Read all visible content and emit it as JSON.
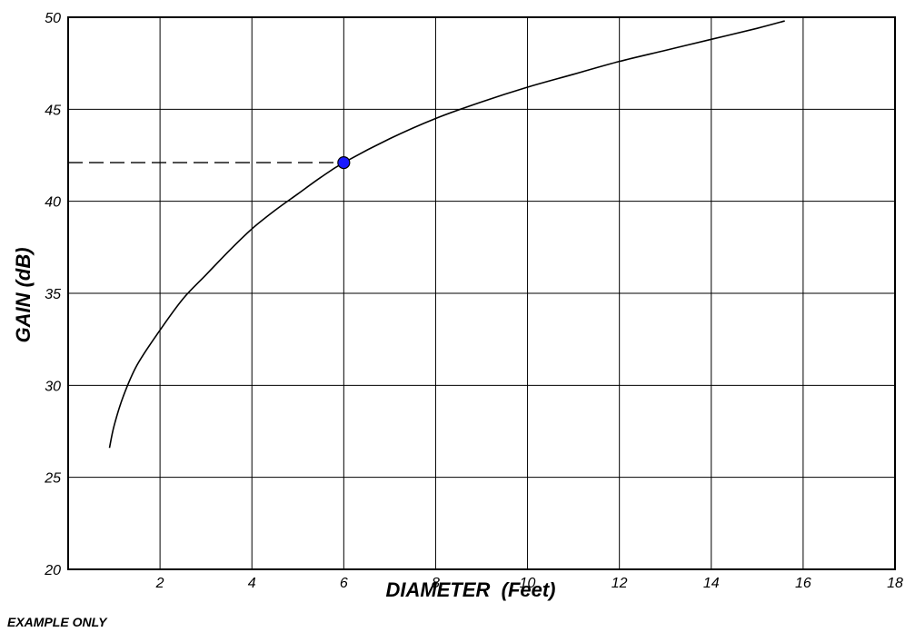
{
  "chart_data": {
    "type": "line",
    "title": "",
    "xlabel": "DIAMETER  (Feet)",
    "ylabel": "GAIN (dB)",
    "xlim": [
      0,
      18
    ],
    "ylim": [
      20,
      50
    ],
    "x_ticks": [
      2,
      4,
      6,
      8,
      10,
      12,
      14,
      16,
      18
    ],
    "y_ticks": [
      20,
      25,
      30,
      35,
      40,
      45,
      50
    ],
    "grid": true,
    "series": [
      {
        "x": [
          0.9,
          1.0,
          1.2,
          1.5,
          2.0,
          2.5,
          3.0,
          3.5,
          4.0,
          4.5,
          5.0,
          5.5,
          6.0,
          7.0,
          8.0,
          9.0,
          10.0,
          11.0,
          12.0,
          13.0,
          14.0,
          15.0,
          15.6
        ],
        "y": [
          26.6,
          27.8,
          29.4,
          31.1,
          33.0,
          34.7,
          36.0,
          37.3,
          38.5,
          39.5,
          40.4,
          41.3,
          42.1,
          43.4,
          44.5,
          45.4,
          46.2,
          46.9,
          47.6,
          48.2,
          48.8,
          49.4,
          49.8
        ],
        "color": "#000000"
      }
    ],
    "highlight_point": {
      "x": 6,
      "y": 42.1,
      "color": "#1a1aff"
    },
    "annotations": [
      {
        "type": "dashed-hline",
        "y": 42.1,
        "x_start": 0,
        "x_end": 6
      }
    ]
  },
  "footnote": "EXAMPLE ONLY"
}
